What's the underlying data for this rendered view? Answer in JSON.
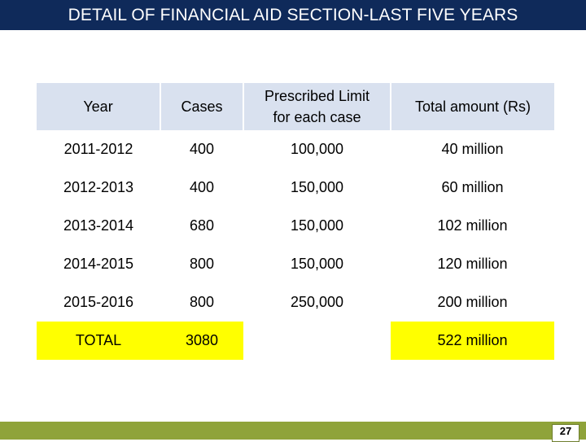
{
  "title": "DETAIL OF FINANCIAL AID SECTION-LAST FIVE YEARS",
  "table": {
    "headers": [
      "Year",
      "Cases",
      "Prescribed Limit\nfor each case",
      "Total amount (Rs)"
    ],
    "rows": [
      [
        "2011-2012",
        "400",
        "100,000",
        "40 million"
      ],
      [
        "2012-2013",
        "400",
        "150,000",
        "60 million"
      ],
      [
        "2013-2014",
        "680",
        "150,000",
        "102 million"
      ],
      [
        "2014-2015",
        "800",
        "150,000",
        "120 million"
      ],
      [
        "2015-2016",
        "800",
        "250,000",
        "200 million"
      ]
    ],
    "total": {
      "label": "TOTAL",
      "cases": "3080",
      "limit": "",
      "amount": "522 million"
    }
  },
  "footer": {
    "page_number": "27"
  },
  "colors": {
    "title_bar": "#0f2a5a",
    "header_fill": "#d9e1ef",
    "total_fill": "#ffff00",
    "footer_bar": "#8fa33a"
  }
}
